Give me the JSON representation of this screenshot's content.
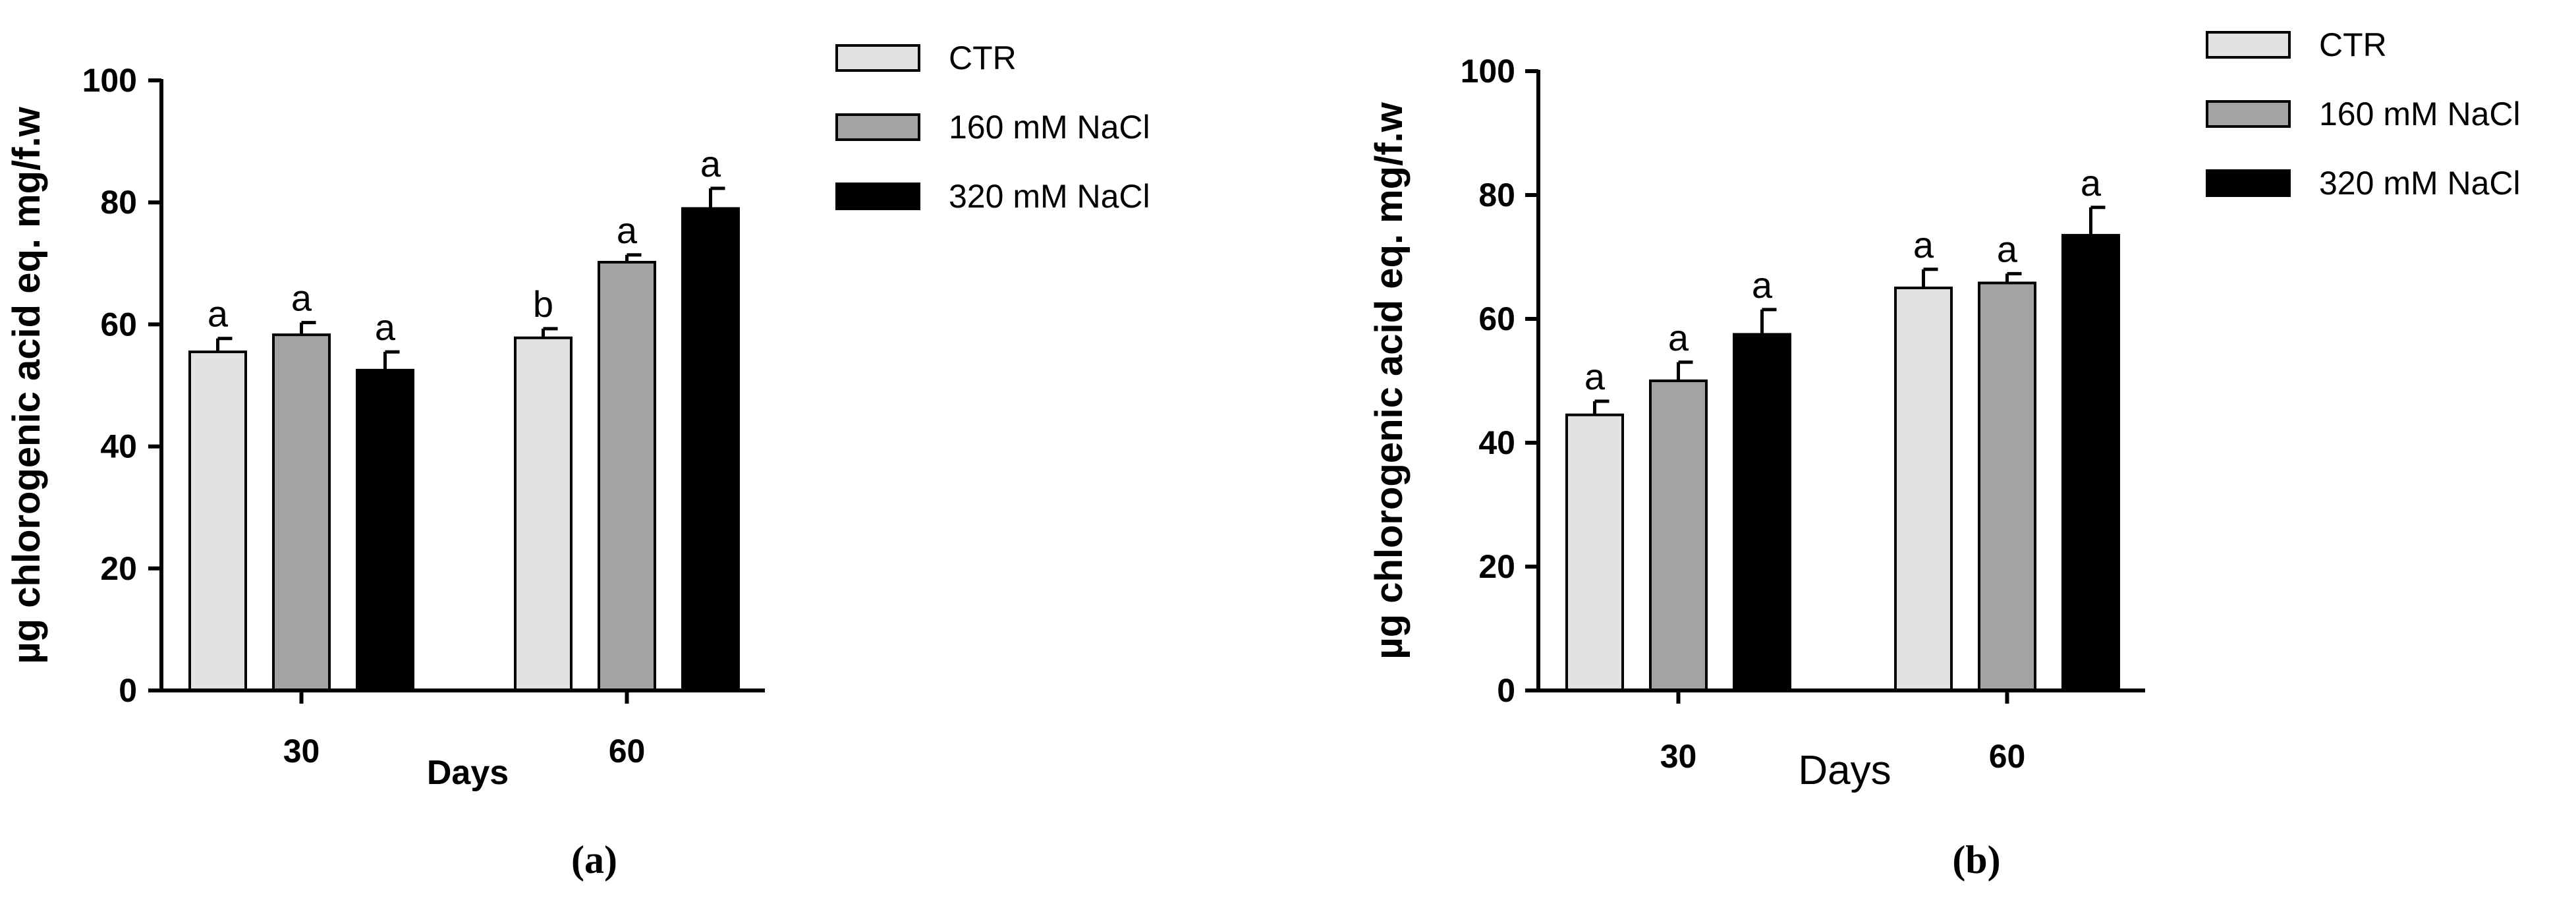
{
  "colors": {
    "CTR": "#e2e2e2",
    "160 mM NaCl": "#a3a3a3",
    "320 mM NaCl": "#000000",
    "axis": "#000000"
  },
  "chart_data": [
    {
      "type": "bar",
      "panel_label": "(a)",
      "categories": [
        "30",
        "60"
      ],
      "xlabel": "Days",
      "ylabel": "µg chlorogenic acid eq. mg/f.w",
      "ylim": [
        0,
        100
      ],
      "yticks": [
        "0",
        "20",
        "40",
        "60",
        "80",
        "100"
      ],
      "grid": false,
      "legend_position": "top-right",
      "series": [
        {
          "name": "CTR",
          "values": [
            55.5,
            57.8
          ],
          "errors": [
            2.2,
            1.5
          ],
          "letters": [
            "a",
            "b"
          ]
        },
        {
          "name": "160 mM NaCl",
          "values": [
            58.3,
            70.2
          ],
          "errors": [
            2.0,
            1.2
          ],
          "letters": [
            "a",
            "a"
          ]
        },
        {
          "name": "320 mM NaCl",
          "values": [
            52.5,
            79.0
          ],
          "errors": [
            3.0,
            3.3
          ],
          "letters": [
            "a",
            "a"
          ]
        }
      ]
    },
    {
      "type": "bar",
      "panel_label": "(b)",
      "categories": [
        "30",
        "60"
      ],
      "xlabel": "Days",
      "ylabel": "µg chlorogenic acid eq. mg/f.w",
      "ylim": [
        0,
        100
      ],
      "yticks": [
        "0",
        "20",
        "40",
        "60",
        "80",
        "100"
      ],
      "grid": false,
      "legend_position": "top-right",
      "series": [
        {
          "name": "CTR",
          "values": [
            44.5,
            65.0
          ],
          "errors": [
            2.2,
            3.0
          ],
          "letters": [
            "a",
            "a"
          ]
        },
        {
          "name": "160 mM NaCl",
          "values": [
            50.0,
            65.8
          ],
          "errors": [
            3.0,
            1.5
          ],
          "letters": [
            "a",
            "a"
          ]
        },
        {
          "name": "320 mM NaCl",
          "values": [
            57.5,
            73.5
          ],
          "errors": [
            4.0,
            4.5
          ],
          "letters": [
            "a",
            "a"
          ]
        }
      ]
    }
  ]
}
